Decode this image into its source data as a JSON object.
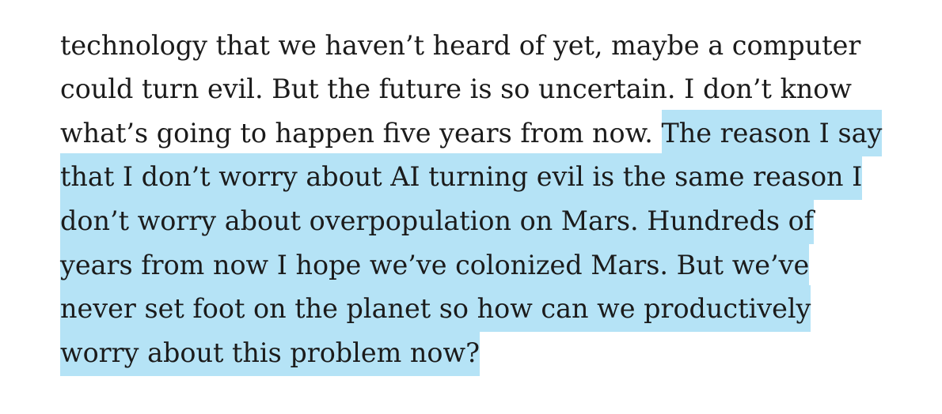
{
  "article": {
    "lines": [
      {
        "text": "technology that we haven’t heard of yet, maybe a computer",
        "highlighted": false
      },
      {
        "text": "could turn evil. But the future is so uncertain. I don’t know",
        "highlighted": false
      },
      {
        "text": "what’s going to happen five years from now.",
        "highlighted": false
      },
      {
        "text": "that I don’t worry about AI turning evil is the same reason I",
        "highlighted": true
      },
      {
        "text": "don’t worry about overpopulation on Mars. Hundreds of",
        "highlighted": true
      },
      {
        "text": "years from now I hope we’ve colonized Mars. But we’ve",
        "highlighted": true
      },
      {
        "text": "never set foot on the planet so how can we productively",
        "highlighted": true
      },
      {
        "text": "worry about this problem now?",
        "highlighted": true
      }
    ],
    "line3_highlight": "The reason I say"
  },
  "colors": {
    "text": "#1b1b1b",
    "highlight": "#b5e3f6",
    "background": "#ffffff"
  }
}
